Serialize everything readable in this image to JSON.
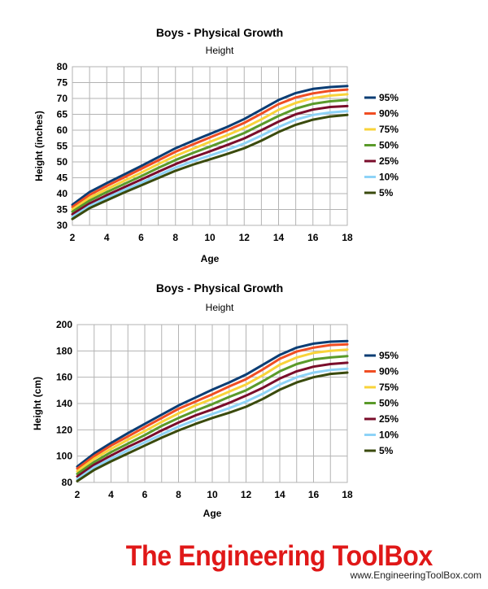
{
  "colors": {
    "95%": "#0b3d74",
    "90%": "#f04e23",
    "75%": "#f8d33a",
    "50%": "#5a9a2a",
    "25%": "#7a0d2b",
    "10%": "#8ed3f7",
    "5%": "#3a4a0d"
  },
  "brand": {
    "logo_text": "The Engineering ToolBox",
    "url": "www.EngineeringToolBox.com"
  },
  "chart_data": [
    {
      "type": "line",
      "title": "Boys - Physical Growth",
      "subtitle": "Height",
      "xlabel": "Age",
      "ylabel": "Height (inches)",
      "xlim": [
        2,
        18
      ],
      "ylim": [
        30,
        80
      ],
      "xticks": [
        2,
        4,
        6,
        8,
        10,
        12,
        14,
        16,
        18
      ],
      "yticks": [
        30,
        35,
        40,
        45,
        50,
        55,
        60,
        65,
        70,
        75,
        80
      ],
      "grid": true,
      "legend": "right",
      "x": [
        2,
        3,
        4,
        5,
        6,
        7,
        8,
        9,
        10,
        11,
        12,
        13,
        14,
        15,
        16,
        17,
        18
      ],
      "series": [
        {
          "name": "95%",
          "values": [
            36.5,
            40.5,
            43.3,
            46.0,
            48.7,
            51.5,
            54.3,
            56.6,
            58.8,
            61.0,
            63.5,
            66.5,
            69.5,
            71.7,
            73.0,
            73.6,
            73.9
          ]
        },
        {
          "name": "90%",
          "values": [
            35.8,
            39.6,
            42.4,
            45.1,
            47.8,
            50.5,
            53.2,
            55.5,
            57.7,
            59.9,
            62.3,
            65.2,
            68.2,
            70.3,
            71.6,
            72.4,
            72.8
          ]
        },
        {
          "name": "75%",
          "values": [
            35.0,
            38.7,
            41.4,
            44.0,
            46.6,
            49.3,
            51.9,
            54.1,
            56.3,
            58.4,
            60.7,
            63.4,
            66.4,
            68.6,
            70.1,
            70.9,
            71.3
          ]
        },
        {
          "name": "50%",
          "values": [
            34.3,
            37.8,
            40.5,
            43.0,
            45.5,
            48.1,
            50.6,
            52.8,
            54.8,
            56.9,
            59.1,
            61.8,
            64.5,
            66.8,
            68.3,
            69.1,
            69.5
          ]
        },
        {
          "name": "25%",
          "values": [
            33.5,
            36.9,
            39.5,
            42.0,
            44.4,
            46.9,
            49.3,
            51.4,
            53.3,
            55.3,
            57.4,
            60.0,
            62.7,
            65.0,
            66.5,
            67.3,
            67.6
          ]
        },
        {
          "name": "10%",
          "values": [
            32.7,
            36.1,
            38.7,
            41.1,
            43.4,
            45.8,
            48.2,
            50.2,
            52.0,
            53.8,
            55.8,
            58.3,
            61.0,
            63.3,
            64.8,
            65.6,
            66.0
          ]
        },
        {
          "name": "5%",
          "values": [
            32.0,
            35.4,
            37.9,
            40.3,
            42.6,
            44.9,
            47.2,
            49.1,
            50.8,
            52.5,
            54.3,
            56.7,
            59.4,
            61.7,
            63.3,
            64.3,
            64.8
          ]
        }
      ]
    },
    {
      "type": "line",
      "title": "Boys - Physical Growth",
      "subtitle": "Height",
      "xlabel": "Age",
      "ylabel": "Height (cm)",
      "xlim": [
        2,
        18
      ],
      "ylim": [
        80,
        200
      ],
      "xticks": [
        2,
        4,
        6,
        8,
        10,
        12,
        14,
        16,
        18
      ],
      "yticks": [
        80,
        100,
        120,
        140,
        160,
        180,
        200
      ],
      "grid": true,
      "legend": "right",
      "x": [
        2,
        3,
        4,
        5,
        6,
        7,
        8,
        9,
        10,
        11,
        12,
        13,
        14,
        15,
        16,
        17,
        18
      ],
      "series": [
        {
          "name": "95%",
          "values": [
            92.0,
            102.0,
            110.0,
            117.5,
            124.5,
            131.5,
            138.5,
            144.5,
            150.5,
            156.0,
            162.0,
            169.5,
            177.0,
            182.5,
            185.5,
            187.0,
            187.5
          ]
        },
        {
          "name": "90%",
          "values": [
            90.5,
            100.0,
            108.0,
            115.0,
            122.0,
            129.0,
            136.0,
            141.5,
            147.0,
            153.0,
            158.5,
            166.0,
            174.0,
            179.5,
            182.5,
            184.5,
            185.0
          ]
        },
        {
          "name": "75%",
          "values": [
            88.5,
            98.0,
            105.5,
            112.5,
            119.0,
            126.0,
            132.5,
            138.5,
            143.5,
            149.0,
            154.5,
            161.5,
            169.5,
            175.0,
            178.5,
            180.0,
            181.0
          ]
        },
        {
          "name": "50%",
          "values": [
            86.5,
            95.5,
            103.0,
            109.5,
            116.0,
            123.0,
            129.0,
            134.5,
            139.5,
            145.0,
            150.0,
            157.0,
            164.5,
            170.0,
            173.5,
            175.0,
            176.0
          ]
        },
        {
          "name": "25%",
          "values": [
            84.5,
            93.5,
            100.5,
            107.0,
            113.0,
            119.5,
            125.5,
            131.0,
            135.5,
            140.5,
            146.0,
            152.0,
            159.0,
            164.5,
            168.0,
            170.0,
            171.0
          ]
        },
        {
          "name": "10%",
          "values": [
            82.5,
            91.5,
            98.0,
            104.5,
            110.5,
            116.5,
            122.5,
            127.5,
            132.0,
            136.5,
            141.5,
            147.5,
            154.5,
            160.0,
            163.5,
            165.5,
            166.5
          ]
        },
        {
          "name": "5%",
          "values": [
            81.0,
            89.5,
            96.0,
            102.0,
            108.0,
            114.0,
            119.5,
            124.5,
            129.0,
            133.0,
            137.5,
            143.5,
            150.5,
            156.0,
            160.0,
            162.5,
            163.5
          ]
        }
      ]
    }
  ]
}
